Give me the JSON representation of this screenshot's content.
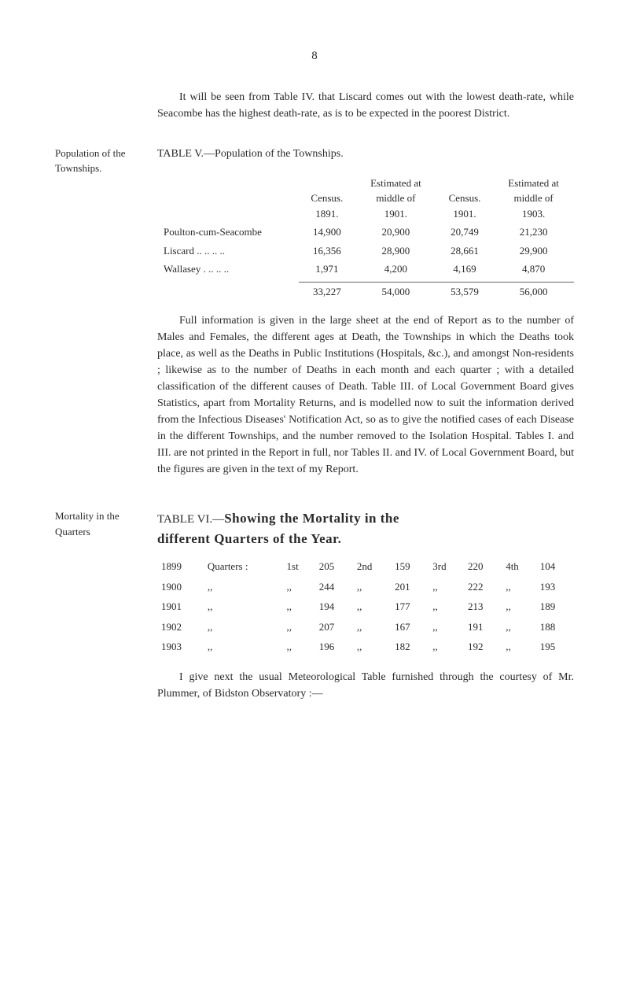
{
  "page_number": "8",
  "intro": "It will be seen from Table IV. that Liscard comes out with the lowest death-rate, while Seacombe has the highest death-rate, as is to be expected in the poorest District.",
  "section1": {
    "margin_label": "Population of the Townships.",
    "table_title": "TABLE V.—Population of the Townships.",
    "headers": {
      "c1": "Census.\n1891.",
      "c2": "Estimated at\nmiddle of\n1901.",
      "c3": "Census.\n1901.",
      "c4": "Estimated at\nmiddle of\n1903."
    },
    "rows": [
      {
        "label": "Poulton-cum-Seacombe",
        "c1": "14,900",
        "c2": "20,900",
        "c3": "20,749",
        "c4": "21,230"
      },
      {
        "label": "Liscard .. .. .. ..",
        "c1": "16,356",
        "c2": "28,900",
        "c3": "28,661",
        "c4": "29,900"
      },
      {
        "label": "Wallasey . .. .. ..",
        "c1": "1,971",
        "c2": "4,200",
        "c3": "4,169",
        "c4": "4,870"
      }
    ],
    "totals": {
      "c1": "33,227",
      "c2": "54,000",
      "c3": "53,579",
      "c4": "56,000"
    },
    "body": "Full information is given in the large sheet at the end of Report as to the number of Males and Females, the different ages at Death, the Townships in which the Deaths took place, as well as the Deaths in Public Institutions (Hospitals, &c.), and amongst Non-residents ; likewise as to the number of Deaths in each month and each quarter ; with a detailed classification of the different causes of Death. Table III. of Local Government Board gives Statistics, apart from Mortality Returns, and is modelled now to suit the information derived from the Infectious Diseases' Notification Act, so as to give the notified cases of each Disease in the different Townships, and the number removed to the Isolation Hospital. Tables I. and III. are not printed in the Report in full, nor Tables II. and IV. of Local Government Board, but the figures are given in the text of my Report."
  },
  "section2": {
    "margin_label": "Mortality in the Quarters",
    "title_prefix": "TABLE VI.—",
    "title_bold1": "Showing the Mortality in the",
    "title_bold2": "different Quarters of the Year.",
    "rows": [
      {
        "year": "1899",
        "q": "Quarters :",
        "p1": "1st",
        "v1": "205",
        "p2": "2nd",
        "v2": "159",
        "p3": "3rd",
        "v3": "220",
        "p4": "4th",
        "v4": "104"
      },
      {
        "year": "1900",
        "q": ",,",
        "p1": ",,",
        "v1": "244",
        "p2": ",,",
        "v2": "201",
        "p3": ",,",
        "v3": "222",
        "p4": ",,",
        "v4": "193"
      },
      {
        "year": "1901",
        "q": ",,",
        "p1": ",,",
        "v1": "194",
        "p2": ",,",
        "v2": "177",
        "p3": ",,",
        "v3": "213",
        "p4": ",,",
        "v4": "189"
      },
      {
        "year": "1902",
        "q": ",,",
        "p1": ",,",
        "v1": "207",
        "p2": ",,",
        "v2": "167",
        "p3": ",,",
        "v3": "191",
        "p4": ",,",
        "v4": "188"
      },
      {
        "year": "1903",
        "q": ",,",
        "p1": ",,",
        "v1": "196",
        "p2": ",,",
        "v2": "182",
        "p3": ",,",
        "v3": "192",
        "p4": ",,",
        "v4": "195"
      }
    ],
    "closing": "I give next the usual Meteorological Table furnished through the courtesy of Mr. Plummer, of Bidston Observatory :—"
  }
}
